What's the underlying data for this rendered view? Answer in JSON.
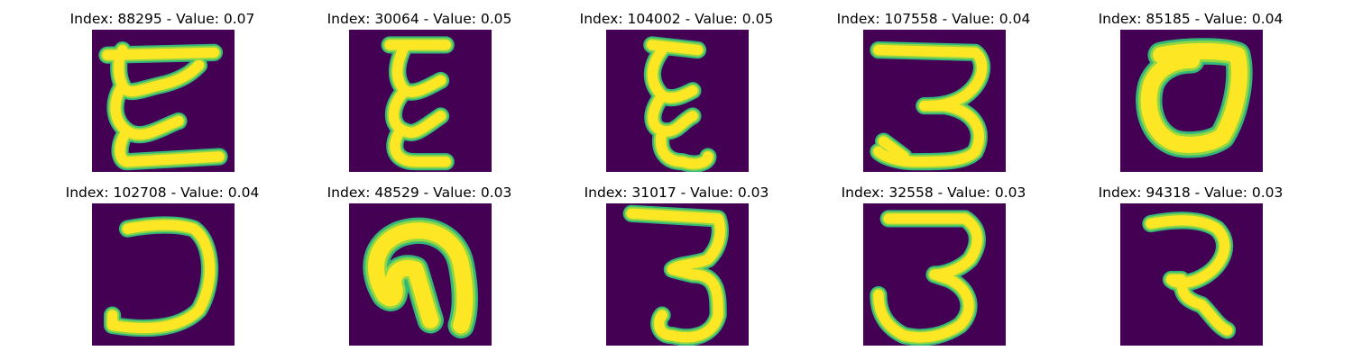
{
  "colors": {
    "background": "#440154",
    "stroke_outer": "#35b779",
    "stroke_mid": "#90d743",
    "stroke_core": "#fde725"
  },
  "panels": [
    {
      "title": "Index: 88295 - Value: 0.07",
      "glyph": "epsilon-wide"
    },
    {
      "title": "Index: 30064 - Value: 0.05",
      "glyph": "epsilon-narrow"
    },
    {
      "title": "Index: 104002 - Value: 0.05",
      "glyph": "epsilon-tall"
    },
    {
      "title": "Index: 107558 - Value: 0.04",
      "glyph": "three-flat-top"
    },
    {
      "title": "Index: 85185 - Value: 0.04",
      "glyph": "zero-loop"
    },
    {
      "title": "Index: 102708 - Value: 0.04",
      "glyph": "reverse-c"
    },
    {
      "title": "Index: 48529 - Value: 0.03",
      "glyph": "nine-hook"
    },
    {
      "title": "Index: 31017 - Value: 0.03",
      "glyph": "three-tall"
    },
    {
      "title": "Index: 32558 - Value: 0.03",
      "glyph": "three-round"
    },
    {
      "title": "Index: 94318 - Value: 0.03",
      "glyph": "two-hook"
    }
  ]
}
